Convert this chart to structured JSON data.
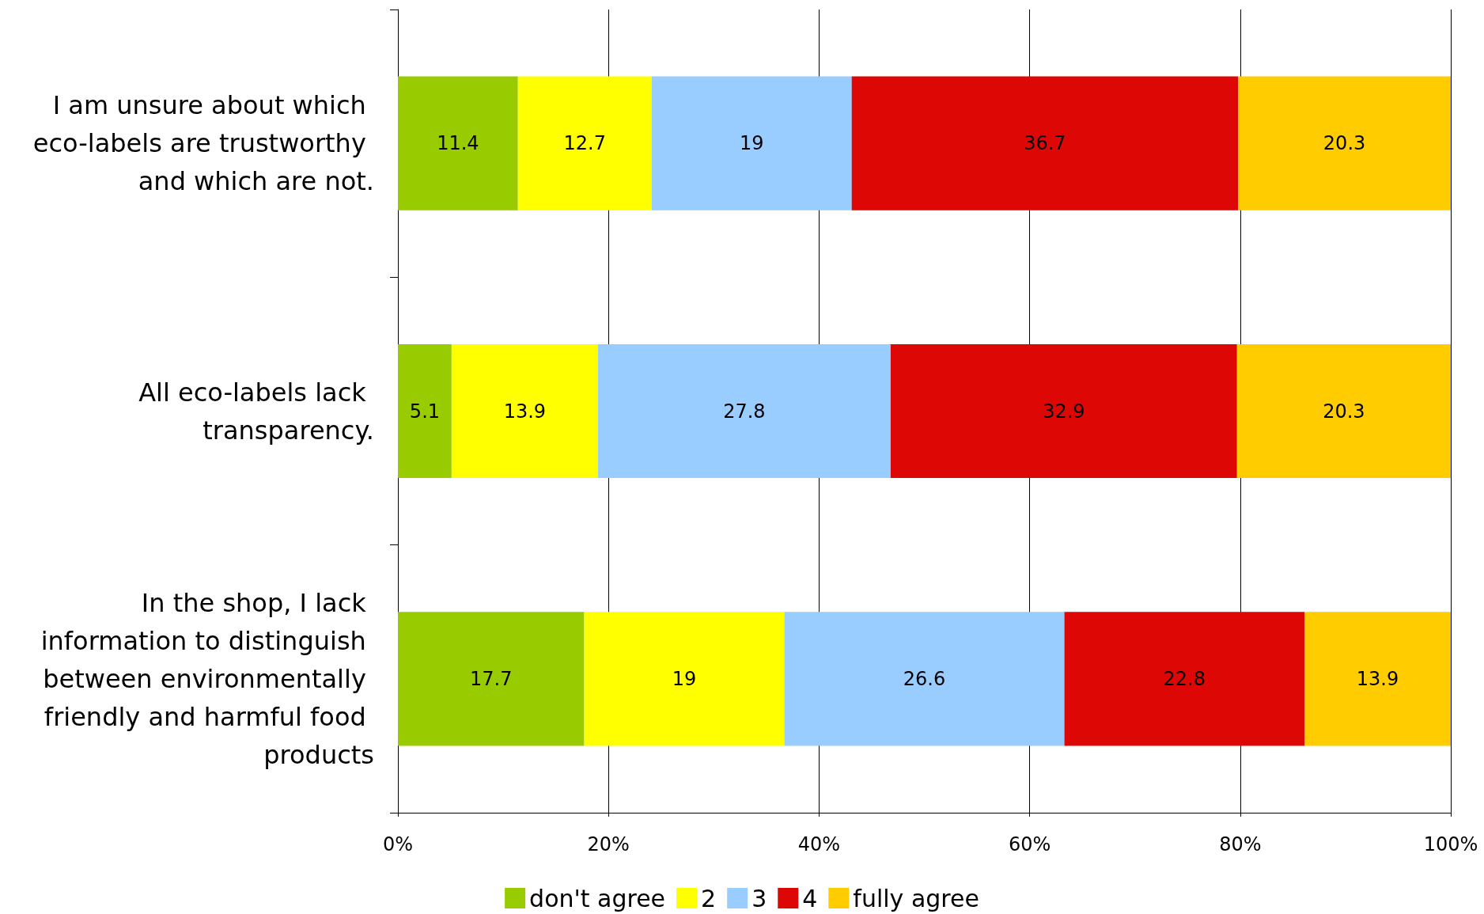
{
  "chart_data": {
    "type": "bar",
    "orientation": "horizontal",
    "stacked": true,
    "categories": [
      "I am unsure about which eco-labels are trustworthy and which are not.",
      "All eco-labels lack transparency.",
      "In the shop, I lack information to distinguish between environmentally friendly and harmful food products"
    ],
    "series": [
      {
        "name": "don't agree",
        "color": "#99cc00",
        "values": [
          11.4,
          5.1,
          17.7
        ]
      },
      {
        "name": "2",
        "color": "#ffff00",
        "values": [
          12.7,
          13.9,
          19
        ]
      },
      {
        "name": "3",
        "color": "#99ccff",
        "values": [
          19,
          27.8,
          26.6
        ]
      },
      {
        "name": "4",
        "color": "#dd0806",
        "values": [
          36.7,
          32.9,
          22.8
        ]
      },
      {
        "name": "fully agree",
        "color": "#ffcc00",
        "values": [
          20.3,
          20.3,
          13.9
        ]
      }
    ],
    "xlim": [
      0,
      100
    ],
    "xticks": [
      {
        "value": 0,
        "label": "0%"
      },
      {
        "value": 20,
        "label": "20%"
      },
      {
        "value": 40,
        "label": "40%"
      },
      {
        "value": 60,
        "label": "60%"
      },
      {
        "value": 80,
        "label": "80%"
      },
      {
        "value": 100,
        "label": "100%"
      }
    ],
    "grid": "x",
    "legend": "bottom",
    "data_labels": true
  }
}
